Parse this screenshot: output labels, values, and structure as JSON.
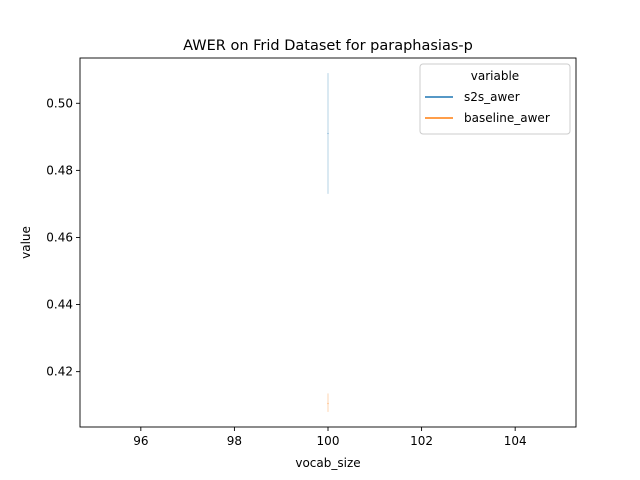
{
  "chart_data": {
    "type": "line",
    "title": "AWER on Frid Dataset for paraphasias-p",
    "xlabel": "vocab_size",
    "ylabel": "value",
    "xlim": [
      94.7,
      105.3
    ],
    "ylim": [
      0.4035,
      0.5135
    ],
    "xticks": [
      96,
      98,
      100,
      102,
      104
    ],
    "yticks": [
      0.42,
      0.44,
      0.46,
      0.48,
      0.5
    ],
    "legend": {
      "title": "variable",
      "placement": "top-right"
    },
    "grid": false,
    "series": [
      {
        "name": "s2s_awer",
        "color": "#1f77b4",
        "x": [
          100
        ],
        "y": [
          0.491
        ],
        "ci": [
          0.473,
          0.509
        ]
      },
      {
        "name": "baseline_awer",
        "color": "#ff7f0e",
        "x": [
          100
        ],
        "y": [
          0.4105
        ],
        "ci": [
          0.408,
          0.4135
        ]
      }
    ]
  }
}
